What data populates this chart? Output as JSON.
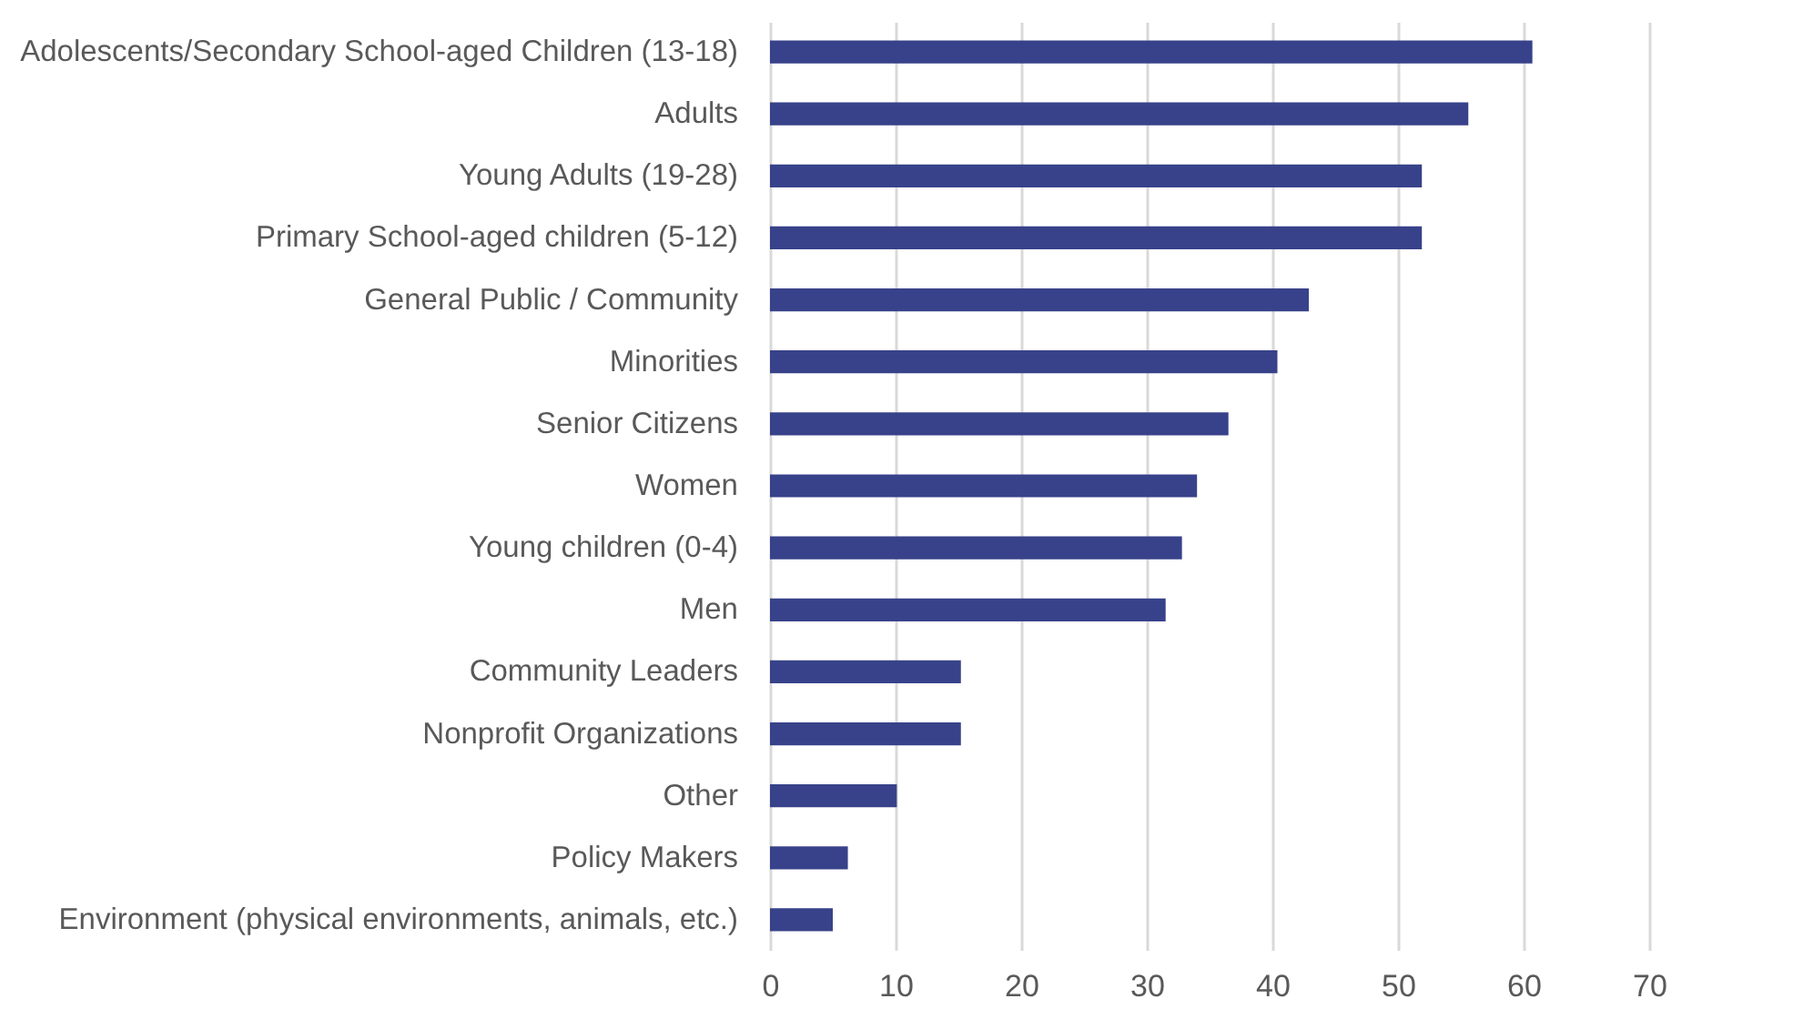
{
  "chart_data": {
    "type": "bar",
    "orientation": "horizontal",
    "categories": [
      "Adolescents/Secondary School-aged Children (13-18)",
      "Adults",
      "Young Adults (19-28)",
      "Primary School-aged children (5-12)",
      "General Public / Community",
      "Minorities",
      "Senior Citizens",
      "Women",
      "Young children (0-4)",
      "Men",
      "Community Leaders",
      "Nonprofit Organizations",
      "Other",
      "Policy Makers",
      "Environment (physical environments, animals, etc.)"
    ],
    "values": [
      60.7,
      55.6,
      51.9,
      51.9,
      42.9,
      40.4,
      36.5,
      34.0,
      32.8,
      31.5,
      15.2,
      15.2,
      10.1,
      6.2,
      5.0
    ],
    "color": "#38428a",
    "xlim": [
      0,
      70
    ],
    "xticks": [
      0,
      10,
      20,
      30,
      40,
      50,
      60,
      70
    ],
    "grid": "x"
  }
}
